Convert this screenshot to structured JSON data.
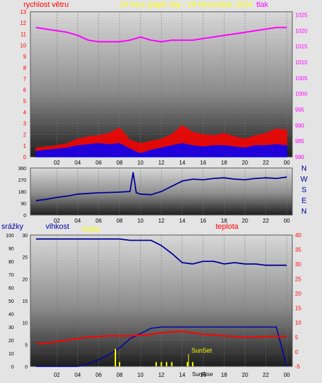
{
  "header": {
    "graph_title": "24 hour graph day : 28 November 2024",
    "wind_speed_label": "rychlost větru",
    "pressure_label": "tlak",
    "rain_label": "srážky",
    "humidity_label": "vlhkost",
    "solar_label": "Solar",
    "temperature_label": "teplota",
    "sunrise_label": "SunRise",
    "sunset_label": "SunSet"
  },
  "colors": {
    "wind_speed": "#ff0000",
    "wind_gust_low": "#0000ff",
    "pressure": "#ff00ff",
    "wind_direction": "#000099",
    "humidity": "#000099",
    "solar": "#0000aa",
    "temperature": "#ff0000",
    "rain": "#ffff00",
    "title": "#ffff00"
  },
  "chart_data": [
    {
      "type": "line",
      "id": "wind-pressure",
      "x_ticks": [
        "02",
        "04",
        "06",
        "08",
        "10",
        "12",
        "14",
        "16",
        "18",
        "20",
        "22",
        "00"
      ],
      "y_left_ticks": [
        "0",
        "1",
        "2",
        "3",
        "4",
        "5",
        "6",
        "7",
        "8",
        "9",
        "10",
        "11",
        "12",
        "13"
      ],
      "y_right_ticks": [
        "980",
        "985",
        "990",
        "995",
        "1000",
        "1005",
        "1010",
        "1015",
        "1020",
        "1025"
      ],
      "ylim_left": [
        0,
        13
      ],
      "ylim_right": [
        980,
        1026
      ],
      "series": [
        {
          "name": "rychlost větru",
          "axis": "left",
          "x": [
            0,
            1,
            2,
            3,
            4,
            5,
            6,
            7,
            8,
            9,
            10,
            11,
            12,
            13,
            14,
            15,
            16,
            17,
            18,
            19,
            20,
            21,
            22,
            23,
            24
          ],
          "y": [
            0.8,
            0.9,
            1.0,
            1.2,
            1.6,
            1.8,
            1.9,
            2.1,
            2.6,
            1.5,
            1.2,
            1.4,
            1.6,
            2.0,
            2.8,
            2.2,
            2.0,
            1.9,
            2.1,
            1.8,
            1.6,
            1.9,
            2.1,
            2.5,
            2.4
          ]
        },
        {
          "name": "",
          "axis": "left",
          "x": [
            0,
            1,
            2,
            3,
            4,
            5,
            6,
            7,
            8,
            9,
            10,
            11,
            12,
            13,
            14,
            15,
            16,
            17,
            18,
            19,
            20,
            21,
            22,
            23,
            24
          ],
          "y": [
            0.5,
            0.6,
            0.7,
            0.8,
            1.0,
            1.1,
            1.2,
            1.1,
            1.2,
            0.7,
            0.3,
            0.6,
            0.8,
            1.0,
            1.2,
            1.0,
            0.9,
            1.0,
            1.0,
            0.9,
            0.8,
            1.0,
            1.0,
            1.1,
            1.0
          ]
        },
        {
          "name": "tlak",
          "axis": "right",
          "x": [
            0,
            1,
            2,
            3,
            4,
            5,
            6,
            7,
            8,
            9,
            10,
            11,
            12,
            13,
            14,
            15,
            16,
            17,
            18,
            19,
            20,
            21,
            22,
            23,
            24
          ],
          "y": [
            1021,
            1020.5,
            1020,
            1019.5,
            1018.5,
            1017,
            1016.5,
            1016.5,
            1016.5,
            1017,
            1018,
            1017,
            1016.5,
            1017,
            1017,
            1017,
            1017.5,
            1018,
            1018.5,
            1019,
            1019.5,
            1020,
            1020.5,
            1021,
            1021
          ]
        }
      ]
    },
    {
      "type": "line",
      "id": "wind-direction",
      "x_ticks": [
        "02",
        "04",
        "06",
        "08",
        "10",
        "12",
        "14",
        "16",
        "18",
        "20",
        "22",
        "00"
      ],
      "y_left_ticks": [
        "0",
        "90",
        "180",
        "270",
        "360"
      ],
      "y_right_ticks": [
        "N",
        "W",
        "S",
        "E",
        "N"
      ],
      "ylim": [
        0,
        360
      ],
      "series": [
        {
          "name": "",
          "x": [
            0,
            1,
            2,
            3,
            4,
            5,
            6,
            7,
            8,
            9,
            9.3,
            9.6,
            10,
            11,
            12,
            13,
            14,
            15,
            16,
            17,
            18,
            19,
            20,
            21,
            22,
            23,
            24
          ],
          "y": [
            110,
            120,
            135,
            145,
            160,
            165,
            170,
            172,
            175,
            180,
            325,
            170,
            160,
            155,
            180,
            220,
            260,
            275,
            270,
            280,
            285,
            275,
            270,
            280,
            285,
            280,
            290
          ]
        }
      ]
    },
    {
      "type": "line",
      "id": "humidity-temperature-solar-rain",
      "x_ticks": [
        "02",
        "04",
        "06",
        "08",
        "10",
        "12",
        "14",
        "16",
        "18",
        "20",
        "22",
        "00"
      ],
      "y_left_ticks": [
        "0",
        "10",
        "20",
        "30",
        "40",
        "50",
        "60",
        "70",
        "80",
        "90",
        "100"
      ],
      "y_rain_ticks": [
        "0",
        "5",
        "10",
        "15",
        "20",
        "25",
        "30"
      ],
      "y_right_ticks": [
        "-5",
        "0",
        "5",
        "10",
        "15",
        "20",
        "25",
        "30",
        "35",
        "40"
      ],
      "ylim_left": [
        0,
        100
      ],
      "ylim_right": [
        -5,
        40
      ],
      "series": [
        {
          "name": "vlhkost",
          "axis": "left",
          "x": [
            0,
            1,
            2,
            3,
            4,
            5,
            6,
            7,
            8,
            9,
            10,
            11,
            12,
            13,
            14,
            15,
            16,
            17,
            18,
            19,
            20,
            21,
            22,
            23,
            24
          ],
          "y": [
            97,
            97,
            97,
            97,
            97,
            97,
            97,
            97,
            97,
            96,
            96,
            96,
            92,
            86,
            79,
            78,
            80,
            80,
            78,
            79,
            78,
            78,
            77,
            77,
            77
          ]
        },
        {
          "name": "Solar",
          "axis": "left",
          "x": [
            0,
            3,
            4,
            5,
            6,
            7,
            8,
            9,
            10,
            11,
            12,
            13,
            14,
            15,
            16,
            17,
            18,
            19,
            20,
            21,
            22,
            23,
            24
          ],
          "y": [
            0,
            0,
            0,
            2,
            5,
            9,
            14,
            21,
            25,
            29,
            30,
            30,
            30,
            30,
            30,
            30,
            30,
            30,
            30,
            30,
            30,
            30,
            0
          ]
        },
        {
          "name": "teplota",
          "axis": "right",
          "x": [
            0,
            1,
            2,
            3,
            4,
            5,
            6,
            7,
            8,
            9,
            10,
            11,
            12,
            13,
            14,
            15,
            16,
            17,
            18,
            19,
            20,
            21,
            22,
            23,
            24
          ],
          "y": [
            2.8,
            3.0,
            3.5,
            4.0,
            4.5,
            5.0,
            5.2,
            5.5,
            5.5,
            5.5,
            5.7,
            6.0,
            6.5,
            6.8,
            7.0,
            6.5,
            6.0,
            5.8,
            5.5,
            5.2,
            5.0,
            5.0,
            5.2,
            5.3,
            5.2
          ]
        },
        {
          "name": "srážky",
          "axis": "rain",
          "type": "bar",
          "x": [
            7.6,
            8.0,
            11.5,
            12.0,
            12.5,
            13.0,
            14.5,
            15.0
          ],
          "y": [
            4,
            1,
            1,
            1,
            1,
            1,
            1,
            1
          ]
        }
      ]
    }
  ]
}
